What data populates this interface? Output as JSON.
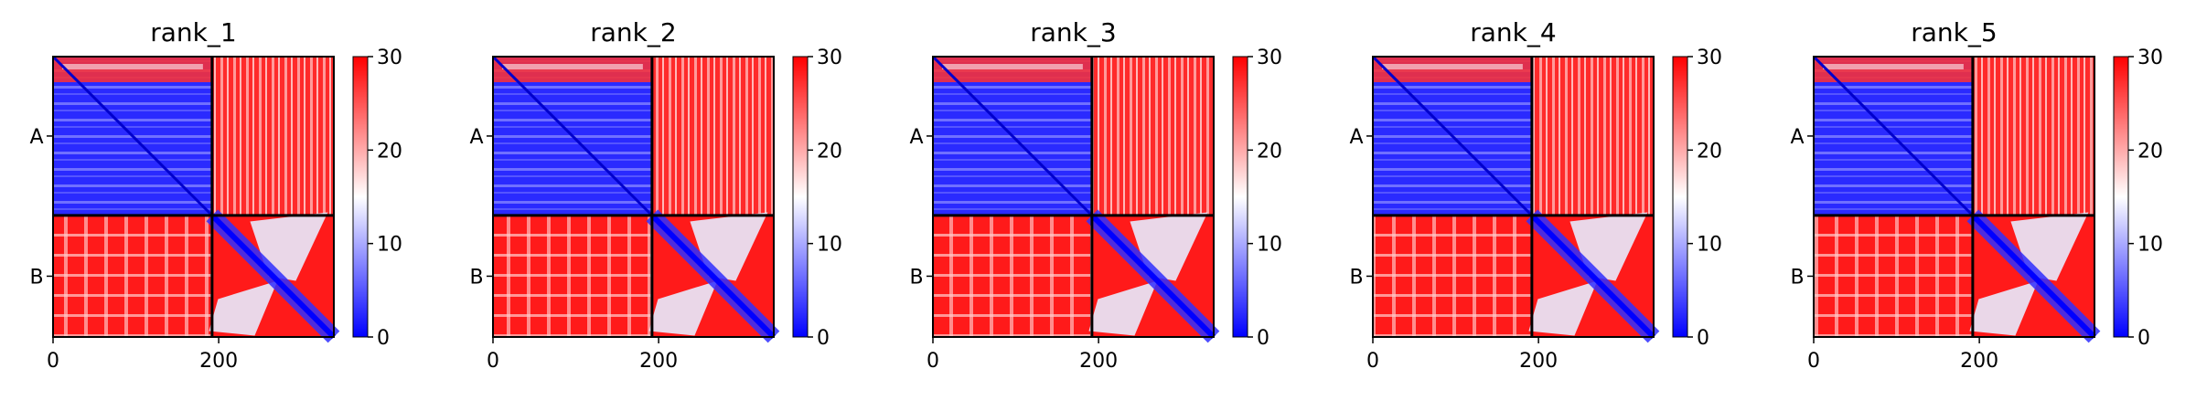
{
  "chart_data": [
    {
      "type": "heatmap",
      "title": "rank_1",
      "row_tick_labels": [
        "A",
        "B"
      ],
      "x_tick_labels": [
        "0",
        "200"
      ],
      "x_ticks": [
        0,
        200
      ],
      "xlim": [
        0,
        339
      ],
      "chain_boundary": 192,
      "colorbar": {
        "ticks": [
          "0",
          "10",
          "20",
          "30"
        ],
        "range": [
          0,
          30
        ],
        "colormap": "bwr"
      }
    },
    {
      "type": "heatmap",
      "title": "rank_2",
      "row_tick_labels": [
        "A",
        "B"
      ],
      "x_tick_labels": [
        "0",
        "200"
      ],
      "x_ticks": [
        0,
        200
      ],
      "xlim": [
        0,
        339
      ],
      "chain_boundary": 192,
      "colorbar": {
        "ticks": [
          "0",
          "10",
          "20",
          "30"
        ],
        "range": [
          0,
          30
        ],
        "colormap": "bwr"
      }
    },
    {
      "type": "heatmap",
      "title": "rank_3",
      "row_tick_labels": [
        "A",
        "B"
      ],
      "x_tick_labels": [
        "0",
        "200"
      ],
      "x_ticks": [
        0,
        200
      ],
      "xlim": [
        0,
        339
      ],
      "chain_boundary": 192,
      "colorbar": {
        "ticks": [
          "0",
          "10",
          "20",
          "30"
        ],
        "range": [
          0,
          30
        ],
        "colormap": "bwr"
      }
    },
    {
      "type": "heatmap",
      "title": "rank_4",
      "row_tick_labels": [
        "A",
        "B"
      ],
      "x_tick_labels": [
        "0",
        "200"
      ],
      "x_ticks": [
        0,
        200
      ],
      "xlim": [
        0,
        339
      ],
      "chain_boundary": 192,
      "colorbar": {
        "ticks": [
          "0",
          "10",
          "20",
          "30"
        ],
        "range": [
          0,
          30
        ],
        "colormap": "bwr"
      }
    },
    {
      "type": "heatmap",
      "title": "rank_5",
      "row_tick_labels": [
        "A",
        "B"
      ],
      "x_tick_labels": [
        "0",
        "200"
      ],
      "x_ticks": [
        0,
        200
      ],
      "xlim": [
        0,
        339
      ],
      "chain_boundary": 192,
      "colorbar": {
        "ticks": [
          "0",
          "10",
          "20",
          "30"
        ],
        "range": [
          0,
          30
        ],
        "colormap": "bwr"
      }
    }
  ],
  "colors": {
    "low": "#0000ff",
    "mid": "#ffffff",
    "high": "#ff0000",
    "frame": "#000000"
  }
}
